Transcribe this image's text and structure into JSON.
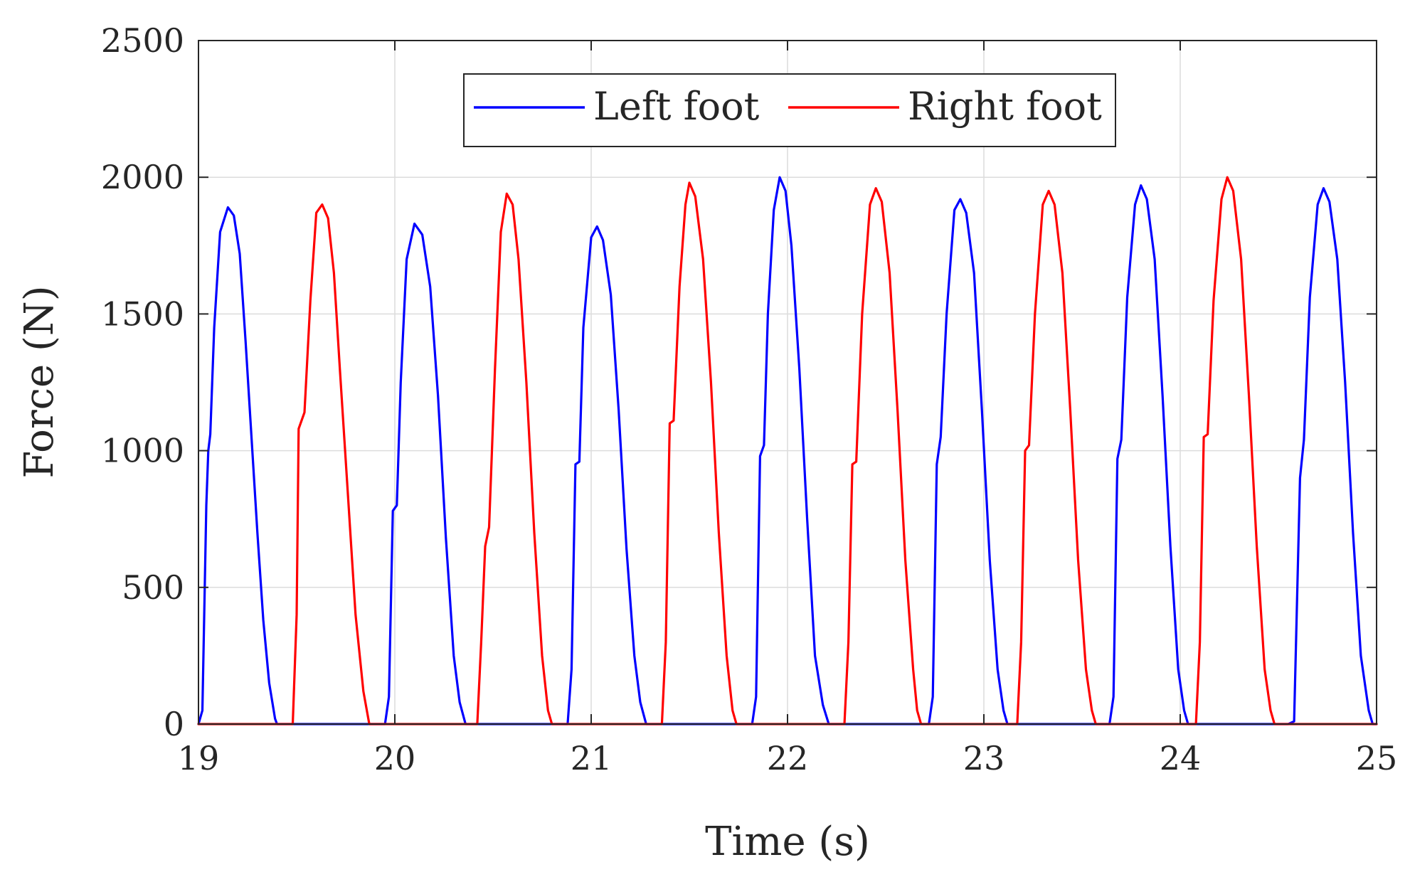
{
  "chart_data": {
    "type": "line",
    "title": "",
    "xlabel": "Time (s)",
    "ylabel": "Force (N)",
    "xlim": [
      19,
      25
    ],
    "ylim": [
      0,
      2500
    ],
    "xticks": [
      19,
      20,
      21,
      22,
      23,
      24,
      25
    ],
    "yticks": [
      0,
      500,
      1000,
      1500,
      2000,
      2500
    ],
    "grid": true,
    "legend": {
      "placement": "top-center",
      "orientation": "horizontal"
    },
    "colors": {
      "left": "#0000ff",
      "right": "#ff0000"
    },
    "series": [
      {
        "name": "Left foot",
        "color": "#0000ff",
        "points": [
          [
            19.0,
            0
          ],
          [
            19.02,
            50
          ],
          [
            19.04,
            800
          ],
          [
            19.05,
            1000
          ],
          [
            19.06,
            1060
          ],
          [
            19.08,
            1450
          ],
          [
            19.11,
            1800
          ],
          [
            19.15,
            1890
          ],
          [
            19.18,
            1860
          ],
          [
            19.21,
            1720
          ],
          [
            19.24,
            1400
          ],
          [
            19.27,
            1050
          ],
          [
            19.3,
            700
          ],
          [
            19.33,
            380
          ],
          [
            19.36,
            150
          ],
          [
            19.39,
            20
          ],
          [
            19.4,
            0
          ],
          [
            19.95,
            0
          ],
          [
            19.97,
            100
          ],
          [
            19.99,
            780
          ],
          [
            20.01,
            800
          ],
          [
            20.03,
            1250
          ],
          [
            20.06,
            1700
          ],
          [
            20.1,
            1830
          ],
          [
            20.14,
            1790
          ],
          [
            20.18,
            1600
          ],
          [
            20.22,
            1200
          ],
          [
            20.26,
            680
          ],
          [
            20.3,
            250
          ],
          [
            20.33,
            80
          ],
          [
            20.36,
            0
          ],
          [
            20.88,
            0
          ],
          [
            20.9,
            200
          ],
          [
            20.92,
            950
          ],
          [
            20.94,
            960
          ],
          [
            20.96,
            1450
          ],
          [
            21.0,
            1780
          ],
          [
            21.03,
            1820
          ],
          [
            21.06,
            1770
          ],
          [
            21.1,
            1570
          ],
          [
            21.14,
            1150
          ],
          [
            21.18,
            640
          ],
          [
            21.22,
            250
          ],
          [
            21.25,
            80
          ],
          [
            21.28,
            0
          ],
          [
            21.82,
            0
          ],
          [
            21.84,
            100
          ],
          [
            21.86,
            980
          ],
          [
            21.88,
            1020
          ],
          [
            21.9,
            1500
          ],
          [
            21.93,
            1880
          ],
          [
            21.96,
            2000
          ],
          [
            21.99,
            1950
          ],
          [
            22.02,
            1750
          ],
          [
            22.06,
            1300
          ],
          [
            22.1,
            750
          ],
          [
            22.14,
            250
          ],
          [
            22.18,
            70
          ],
          [
            22.21,
            0
          ],
          [
            22.72,
            0
          ],
          [
            22.74,
            100
          ],
          [
            22.76,
            950
          ],
          [
            22.78,
            1050
          ],
          [
            22.81,
            1500
          ],
          [
            22.85,
            1880
          ],
          [
            22.88,
            1920
          ],
          [
            22.91,
            1870
          ],
          [
            22.95,
            1650
          ],
          [
            22.99,
            1150
          ],
          [
            23.03,
            600
          ],
          [
            23.07,
            200
          ],
          [
            23.1,
            50
          ],
          [
            23.12,
            0
          ],
          [
            23.64,
            0
          ],
          [
            23.66,
            100
          ],
          [
            23.68,
            970
          ],
          [
            23.7,
            1040
          ],
          [
            23.73,
            1560
          ],
          [
            23.77,
            1900
          ],
          [
            23.8,
            1970
          ],
          [
            23.83,
            1920
          ],
          [
            23.87,
            1700
          ],
          [
            23.91,
            1200
          ],
          [
            23.95,
            650
          ],
          [
            23.99,
            200
          ],
          [
            24.02,
            50
          ],
          [
            24.04,
            0
          ],
          [
            24.55,
            0
          ],
          [
            24.58,
            10
          ],
          [
            24.61,
            900
          ],
          [
            24.63,
            1040
          ],
          [
            24.66,
            1560
          ],
          [
            24.7,
            1900
          ],
          [
            24.73,
            1960
          ],
          [
            24.76,
            1910
          ],
          [
            24.8,
            1700
          ],
          [
            24.84,
            1250
          ],
          [
            24.88,
            700
          ],
          [
            24.92,
            250
          ],
          [
            24.96,
            50
          ],
          [
            24.98,
            0
          ],
          [
            25.0,
            0
          ]
        ]
      },
      {
        "name": "Right foot",
        "color": "#ff0000",
        "points": [
          [
            19.0,
            0
          ],
          [
            19.48,
            0
          ],
          [
            19.5,
            400
          ],
          [
            19.51,
            1080
          ],
          [
            19.54,
            1140
          ],
          [
            19.57,
            1550
          ],
          [
            19.6,
            1870
          ],
          [
            19.63,
            1900
          ],
          [
            19.66,
            1850
          ],
          [
            19.69,
            1650
          ],
          [
            19.72,
            1300
          ],
          [
            19.76,
            850
          ],
          [
            19.8,
            400
          ],
          [
            19.84,
            120
          ],
          [
            19.87,
            0
          ],
          [
            20.42,
            0
          ],
          [
            20.44,
            300
          ],
          [
            20.46,
            650
          ],
          [
            20.48,
            720
          ],
          [
            20.51,
            1300
          ],
          [
            20.54,
            1800
          ],
          [
            20.57,
            1940
          ],
          [
            20.6,
            1900
          ],
          [
            20.63,
            1700
          ],
          [
            20.67,
            1250
          ],
          [
            20.71,
            700
          ],
          [
            20.75,
            250
          ],
          [
            20.78,
            50
          ],
          [
            20.8,
            0
          ],
          [
            21.36,
            0
          ],
          [
            21.38,
            300
          ],
          [
            21.4,
            1100
          ],
          [
            21.42,
            1110
          ],
          [
            21.45,
            1600
          ],
          [
            21.48,
            1900
          ],
          [
            21.5,
            1980
          ],
          [
            21.53,
            1930
          ],
          [
            21.57,
            1700
          ],
          [
            21.61,
            1250
          ],
          [
            21.65,
            700
          ],
          [
            21.69,
            250
          ],
          [
            21.72,
            50
          ],
          [
            21.74,
            0
          ],
          [
            22.29,
            0
          ],
          [
            22.31,
            300
          ],
          [
            22.33,
            950
          ],
          [
            22.35,
            960
          ],
          [
            22.38,
            1500
          ],
          [
            22.42,
            1900
          ],
          [
            22.45,
            1960
          ],
          [
            22.48,
            1910
          ],
          [
            22.52,
            1650
          ],
          [
            22.56,
            1150
          ],
          [
            22.6,
            600
          ],
          [
            22.64,
            200
          ],
          [
            22.66,
            50
          ],
          [
            22.68,
            0
          ],
          [
            23.17,
            0
          ],
          [
            23.19,
            300
          ],
          [
            23.21,
            1000
          ],
          [
            23.23,
            1020
          ],
          [
            23.26,
            1500
          ],
          [
            23.3,
            1900
          ],
          [
            23.33,
            1950
          ],
          [
            23.36,
            1900
          ],
          [
            23.4,
            1650
          ],
          [
            23.44,
            1150
          ],
          [
            23.48,
            600
          ],
          [
            23.52,
            200
          ],
          [
            23.55,
            50
          ],
          [
            23.57,
            0
          ],
          [
            24.08,
            0
          ],
          [
            24.1,
            300
          ],
          [
            24.12,
            1050
          ],
          [
            24.14,
            1060
          ],
          [
            24.17,
            1550
          ],
          [
            24.21,
            1920
          ],
          [
            24.24,
            2000
          ],
          [
            24.27,
            1950
          ],
          [
            24.31,
            1700
          ],
          [
            24.35,
            1200
          ],
          [
            24.39,
            650
          ],
          [
            24.43,
            200
          ],
          [
            24.46,
            50
          ],
          [
            24.48,
            0
          ],
          [
            25.0,
            0
          ]
        ]
      }
    ]
  }
}
